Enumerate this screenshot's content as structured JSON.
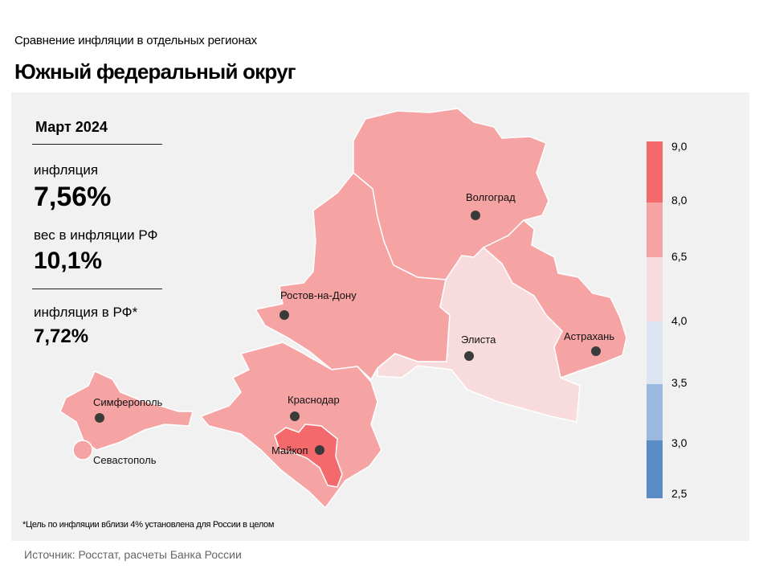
{
  "header": {
    "subtitle": "Сравнение  инфляции  в отдельных  регионах",
    "title": "Южный федеральный округ"
  },
  "stats": {
    "period": "Март 2024",
    "inflation_label": "инфляция",
    "inflation_value": "7,56%",
    "weight_label": "вес в инфляции  РФ",
    "weight_value": "10,1%",
    "rf_label": "инфляция  в РФ*",
    "rf_value": "7,72%"
  },
  "cities": {
    "volgograd": "Волгоград",
    "rostov": "Ростов-на-Дону",
    "elista": "Элиста",
    "astrakhan": "Астрахань",
    "simferopol": "Симферополь",
    "sevastopol": "Севастополь",
    "krasnodar": "Краснодар",
    "maykop": "Майкоп"
  },
  "legend": {
    "ticks": [
      "9,0",
      "8,0",
      "6,5",
      "4,0",
      "3,5",
      "3,0",
      "2,5"
    ],
    "colors": {
      "band_8_9": "#f4696b",
      "band_6_5_8": "#f6a3a4",
      "band_4_6_5": "#f8dcdd",
      "band_3_5_4": "#dde4f2",
      "band_3_3_5": "#9bb9df",
      "band_2_5_3": "#5b8cc8"
    }
  },
  "footnote": "*Цель по инфляции вблизи 4% установлена для России в целом",
  "source": "Источник: Росстат, расчеты Банка России"
}
